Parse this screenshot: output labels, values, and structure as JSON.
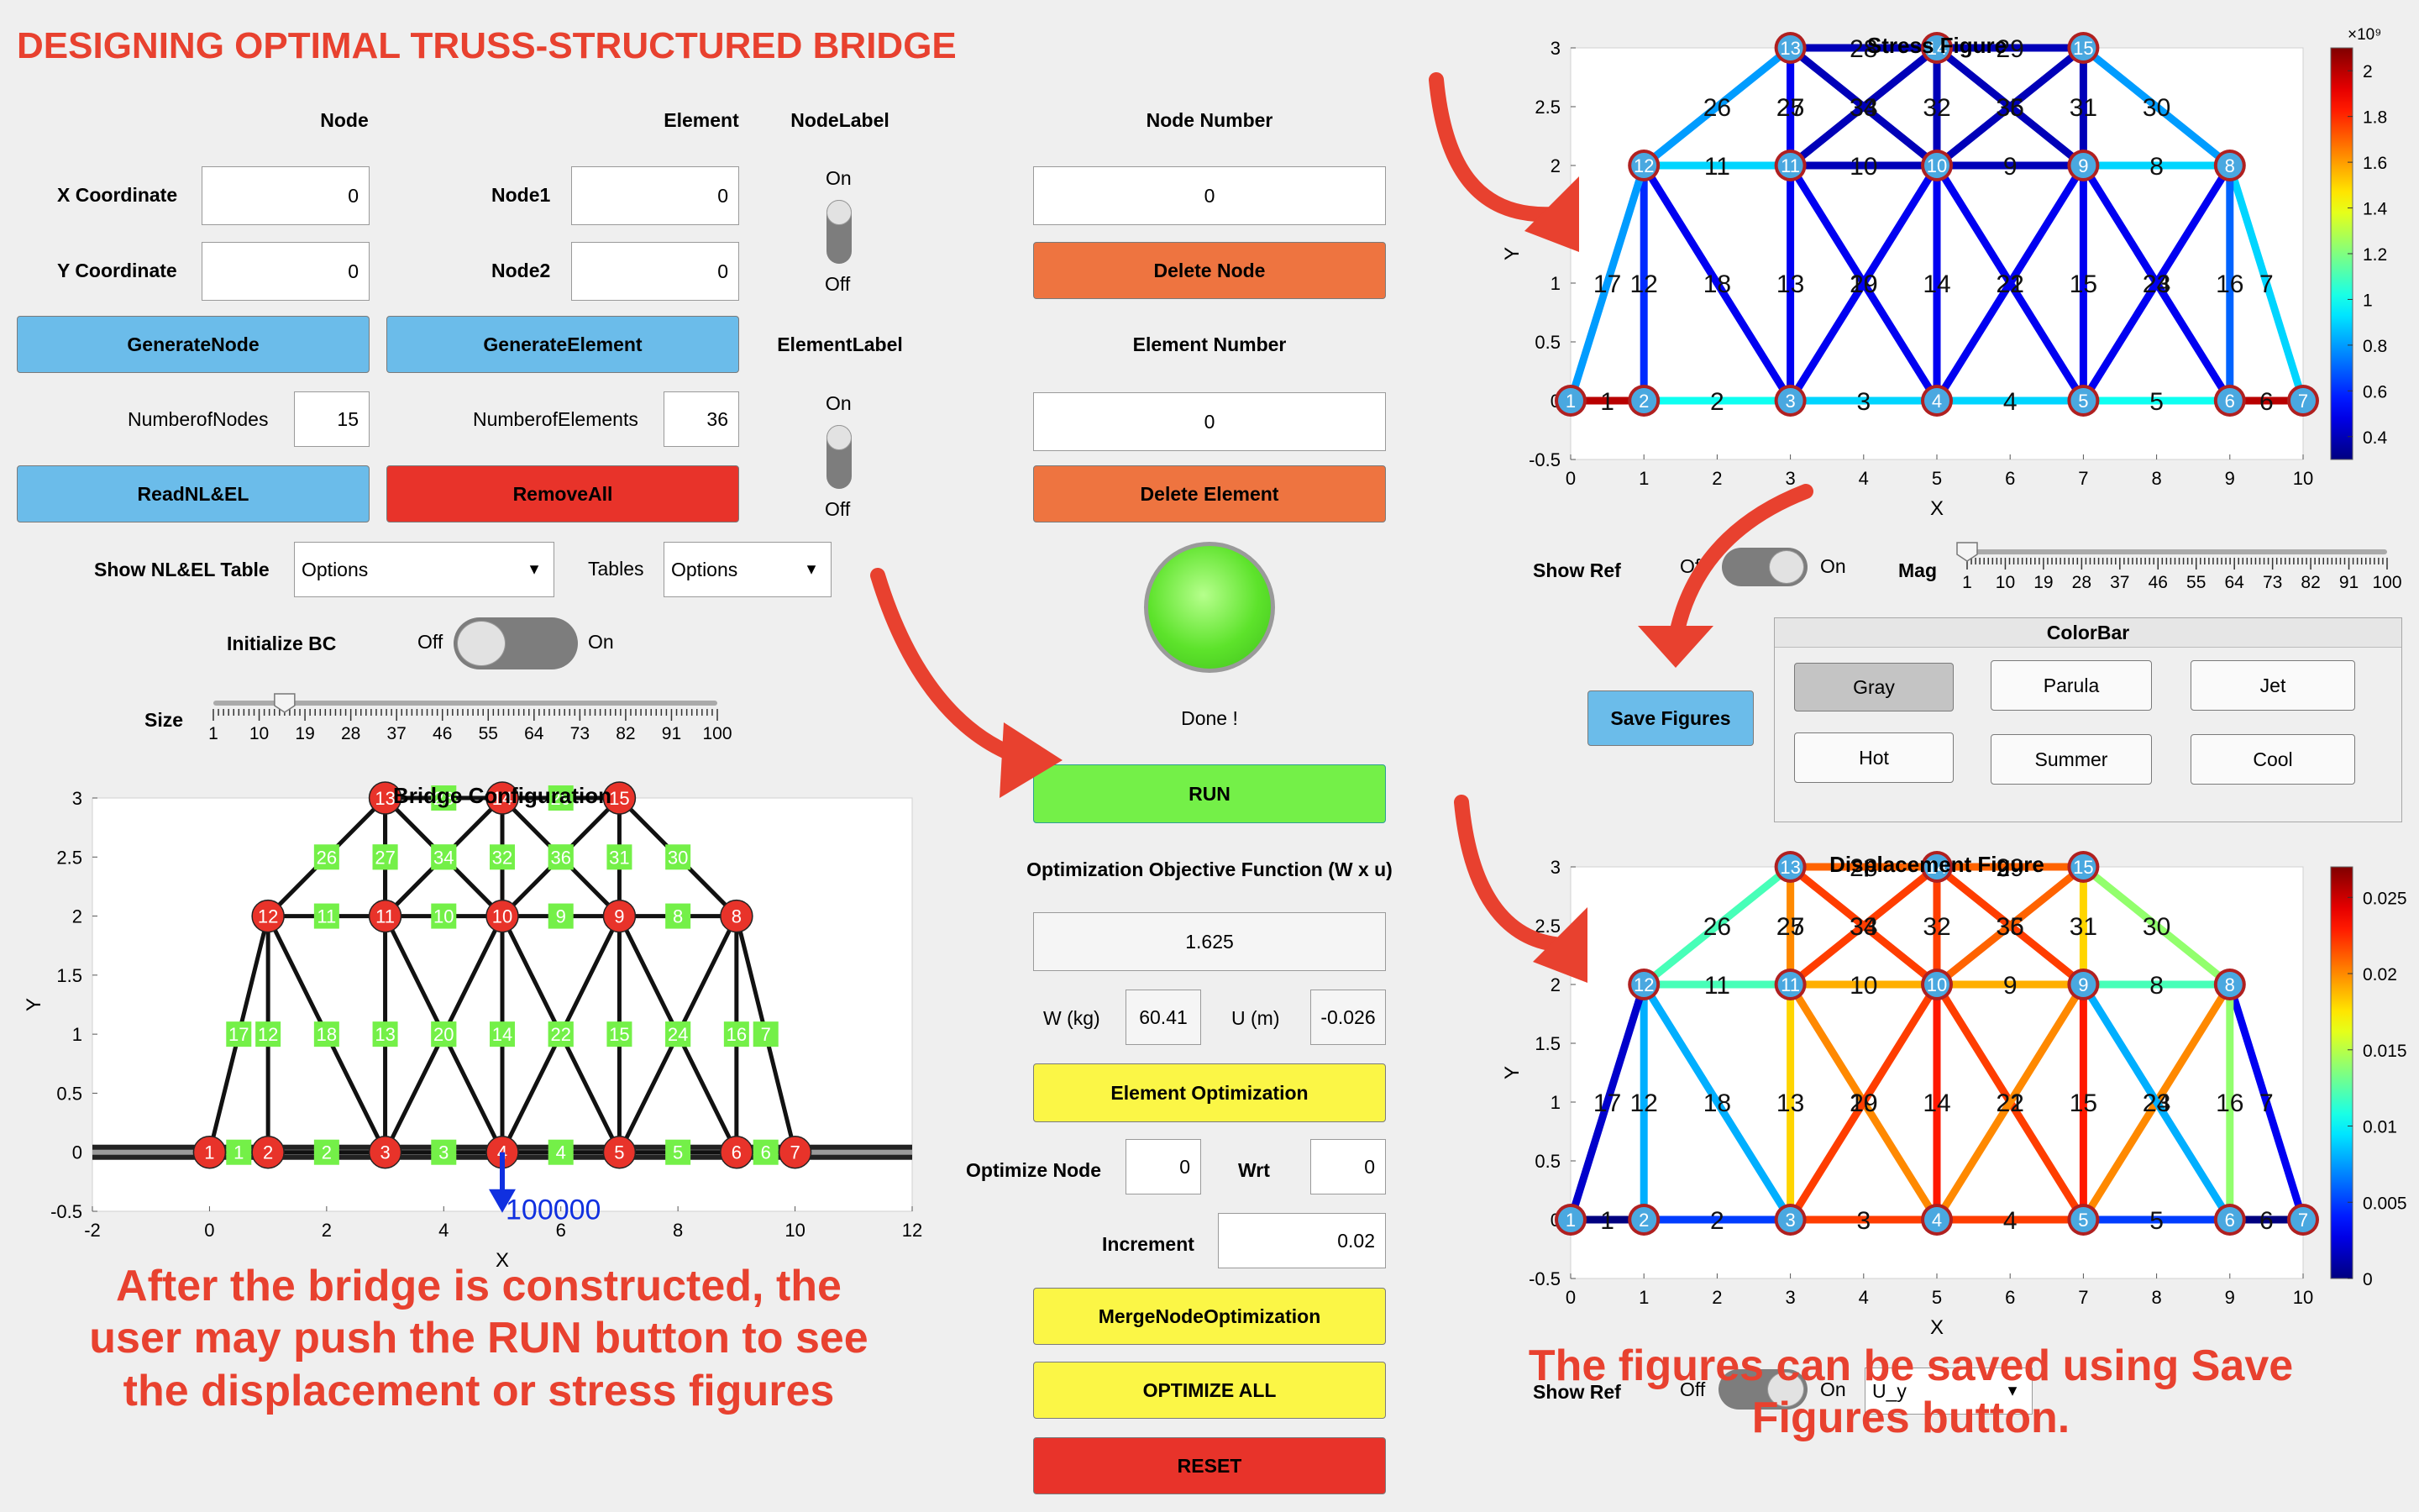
{
  "app_title": "DESIGNING OPTIMAL TRUSS-STRUCTURED BRIDGE",
  "node_section": {
    "heading": "Node",
    "x_label": "X Coordinate",
    "x_value": "0",
    "y_label": "Y Coordinate",
    "y_value": "0",
    "generate_label": "GenerateNode",
    "count_label": "NumberofNodes",
    "count_value": "15",
    "read_label": "ReadNL&EL"
  },
  "element_section": {
    "heading": "Element",
    "node1_label": "Node1",
    "node1_value": "0",
    "node2_label": "Node2",
    "node2_value": "0",
    "generate_label": "GenerateElement",
    "count_label": "NumberofElements",
    "count_value": "36",
    "remove_label": "RemoveAll"
  },
  "labels_section": {
    "node_label": "NodeLabel",
    "element_label": "ElementLabel",
    "on": "On",
    "off": "Off"
  },
  "delete_section": {
    "node_number_label": "Node Number",
    "node_number_value": "0",
    "delete_node_label": "Delete Node",
    "element_number_label": "Element Number",
    "element_number_value": "0",
    "delete_element_label": "Delete Element",
    "status_text": "Done !"
  },
  "table_options": {
    "show_label": "Show NL&EL Table",
    "show_value": "Options",
    "tables_label": "Tables",
    "tables_value": "Options"
  },
  "init_bc": {
    "label": "Initialize BC",
    "off": "Off",
    "on": "On"
  },
  "size_slider": {
    "label": "Size",
    "value": 15,
    "ticks": [
      "1",
      "10",
      "19",
      "28",
      "37",
      "46",
      "55",
      "64",
      "73",
      "82",
      "91",
      "100"
    ]
  },
  "run_label": "RUN",
  "optimization": {
    "objective_label": "Optimization Objective Function (W x u)",
    "objective_value": "1.625",
    "w_label": "W (kg)",
    "w_value": "60.41",
    "u_label": "U (m)",
    "u_value": "-0.026",
    "element_opt_label": "Element Optimization",
    "optimize_node_label": "Optimize Node",
    "optimize_node_value": "0",
    "wrt_label": "Wrt",
    "wrt_value": "0",
    "increment_label": "Increment",
    "increment_value": "0.02",
    "merge_label": "MergeNodeOptimization",
    "optimize_all_label": "OPTIMIZE ALL",
    "reset_label": "RESET"
  },
  "stress_controls": {
    "show_ref_label": "Show Ref",
    "off": "Off",
    "on": "On",
    "mag_label": "Mag",
    "mag_value": 1,
    "mag_ticks": [
      "1",
      "10",
      "19",
      "28",
      "37",
      "46",
      "55",
      "64",
      "73",
      "82",
      "91",
      "100"
    ]
  },
  "colorbar_panel": {
    "title": "ColorBar",
    "save_label": "Save Figures",
    "options": [
      "Gray",
      "Parula",
      "Jet",
      "Hot",
      "Summer",
      "Cool"
    ],
    "selected": "Gray"
  },
  "disp_controls": {
    "show_ref_label": "Show Ref",
    "off": "Off",
    "on": "On",
    "component_value": "U_y"
  },
  "callouts": {
    "left": "After the bridge is constructed, the user may push the RUN button to see the displacement or stress figures",
    "right": "The figures can be saved using Save Figures button."
  },
  "colors": {
    "accent_red": "#e8412f",
    "node_red": "#e8332a",
    "node_blue": "#4aa8e0",
    "element_label_green": "#74f048"
  },
  "chart_data": [
    {
      "type": "diagram-plot",
      "title": "Bridge Configuration",
      "xlabel": "X",
      "ylabel": "Y",
      "xlim": [
        -2,
        12
      ],
      "ylim": [
        -0.5,
        3
      ],
      "xticks": [
        "-2",
        "0",
        "2",
        "4",
        "6",
        "8",
        "10",
        "12"
      ],
      "yticks": [
        "-0.5",
        "0",
        "0.5",
        "1",
        "1.5",
        "2",
        "2.5",
        "3"
      ],
      "load_value": "100000",
      "load_node": 4
    },
    {
      "type": "diagram-plot",
      "title": "Stress Figure",
      "xlabel": "X",
      "ylabel": "Y",
      "xlim": [
        0,
        10
      ],
      "ylim": [
        -0.5,
        3
      ],
      "xticks": [
        "0",
        "1",
        "2",
        "3",
        "4",
        "5",
        "6",
        "7",
        "8",
        "9",
        "10"
      ],
      "yticks": [
        "-0.5",
        "0",
        "0.5",
        "1",
        "1.5",
        "2",
        "2.5",
        "3"
      ],
      "colorbar_exponent": "×10⁹",
      "colorbar_ticks": [
        "0.4",
        "0.6",
        "0.8",
        "1",
        "1.2",
        "1.4",
        "1.6",
        "1.8",
        "2"
      ],
      "colorbar_range": [
        0.3,
        2.1
      ]
    },
    {
      "type": "diagram-plot",
      "title": "Displacement Figure",
      "xlabel": "X",
      "ylabel": "Y",
      "xlim": [
        0,
        10
      ],
      "ylim": [
        -0.5,
        3
      ],
      "xticks": [
        "0",
        "1",
        "2",
        "3",
        "4",
        "5",
        "6",
        "7",
        "8",
        "9",
        "10"
      ],
      "yticks": [
        "-0.5",
        "0",
        "0.5",
        "1",
        "1.5",
        "2",
        "2.5",
        "3"
      ],
      "colorbar_ticks": [
        "0",
        "0.005",
        "0.01",
        "0.015",
        "0.02",
        "0.025"
      ],
      "colorbar_range": [
        0,
        0.027
      ]
    }
  ],
  "truss": {
    "nodes": [
      [
        0,
        0
      ],
      [
        1,
        0
      ],
      [
        3,
        0
      ],
      [
        5,
        0
      ],
      [
        7,
        0
      ],
      [
        9,
        0
      ],
      [
        10,
        0
      ],
      [
        9,
        2
      ],
      [
        7,
        2
      ],
      [
        5,
        2
      ],
      [
        3,
        2
      ],
      [
        1,
        2
      ],
      [
        3,
        3
      ],
      [
        5,
        3
      ],
      [
        7,
        3
      ]
    ],
    "elements": [
      [
        1,
        2
      ],
      [
        2,
        3
      ],
      [
        3,
        4
      ],
      [
        4,
        5
      ],
      [
        5,
        6
      ],
      [
        6,
        7
      ],
      [
        7,
        8
      ],
      [
        8,
        9
      ],
      [
        9,
        10
      ],
      [
        10,
        11
      ],
      [
        11,
        12
      ],
      [
        12,
        2
      ],
      [
        11,
        3
      ],
      [
        10,
        4
      ],
      [
        9,
        5
      ],
      [
        8,
        6
      ],
      [
        12,
        1
      ],
      [
        12,
        3
      ],
      [
        11,
        4
      ],
      [
        10,
        3
      ],
      [
        10,
        5
      ],
      [
        9,
        4
      ],
      [
        8,
        5
      ],
      [
        9,
        6
      ],
      [
        11,
        13
      ],
      [
        12,
        13
      ],
      [
        13,
        11
      ],
      [
        13,
        14
      ],
      [
        14,
        15
      ],
      [
        15,
        8
      ],
      [
        15,
        9
      ],
      [
        14,
        10
      ],
      [
        13,
        10
      ],
      [
        14,
        11
      ],
      [
        14,
        9
      ],
      [
        15,
        10
      ]
    ],
    "stress_values": [
      2.0,
      1.0,
      0.9,
      0.9,
      1.0,
      2.0,
      0.9,
      0.9,
      0.4,
      0.4,
      0.9,
      0.6,
      0.5,
      0.5,
      0.5,
      0.7,
      0.8,
      0.5,
      0.5,
      0.5,
      0.5,
      0.5,
      0.5,
      0.5,
      0.5,
      0.8,
      0.5,
      0.4,
      0.4,
      0.8,
      0.4,
      0.4,
      0.4,
      0.4,
      0.4,
      0.4
    ],
    "disp_values": [
      0.0,
      0.005,
      0.022,
      0.022,
      0.005,
      0.0,
      0.003,
      0.012,
      0.019,
      0.019,
      0.012,
      0.008,
      0.018,
      0.023,
      0.023,
      0.014,
      0.002,
      0.008,
      0.02,
      0.022,
      0.022,
      0.02,
      0.02,
      0.008,
      0.018,
      0.012,
      0.02,
      0.021,
      0.021,
      0.014,
      0.018,
      0.022,
      0.022,
      0.022,
      0.022,
      0.021
    ]
  }
}
